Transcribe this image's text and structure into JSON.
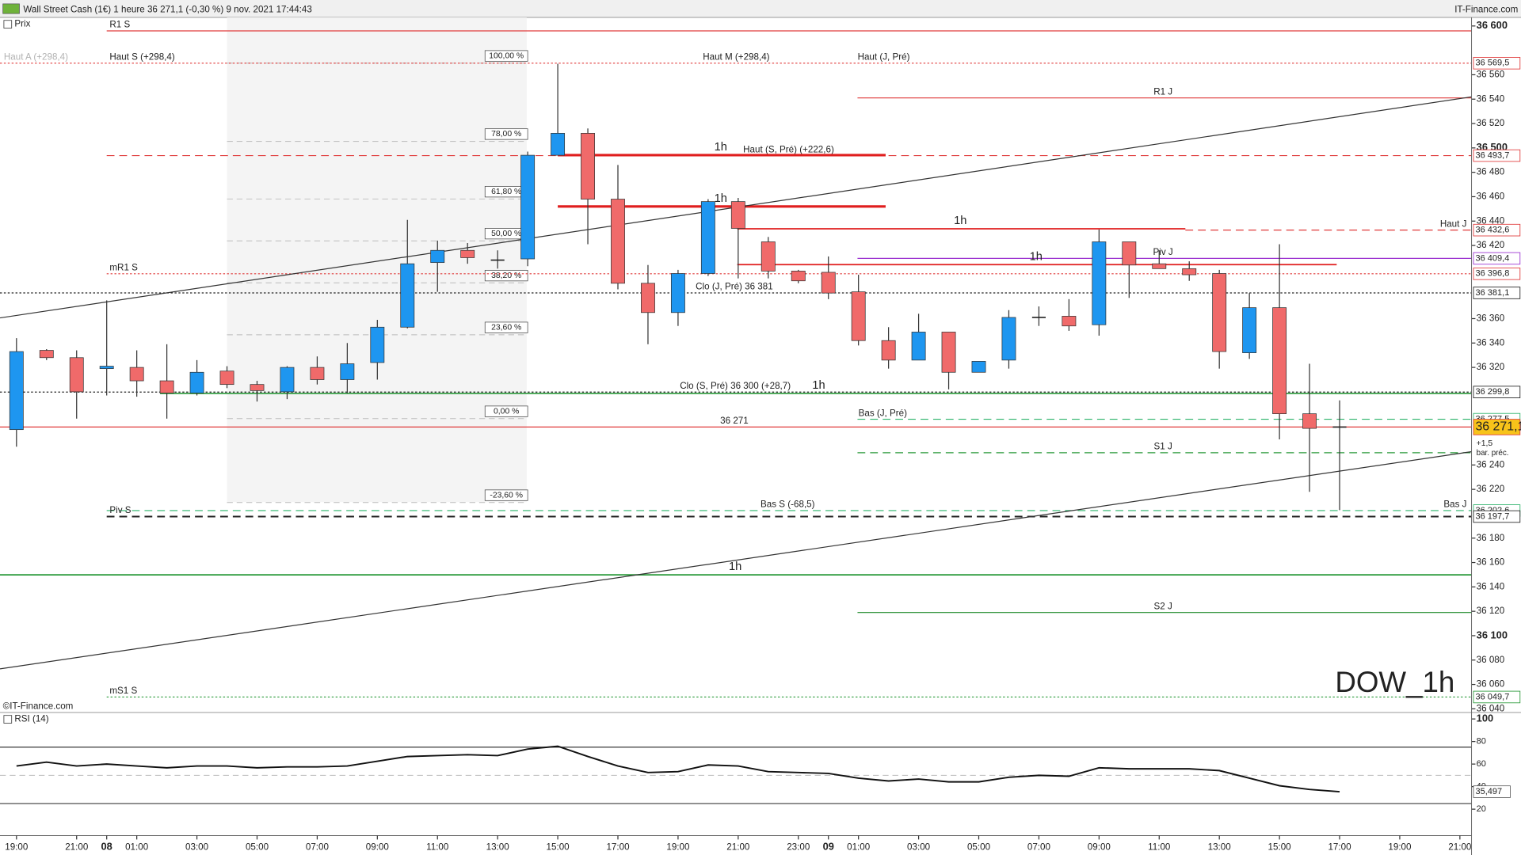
{
  "header": {
    "title": "Wall Street Cash (1€) 1 heure 36 271,1 (-0,30 %) 9 nov. 2021 17:44:43",
    "brand": "IT-Finance.com"
  },
  "chart_data": [
    {
      "type": "candlestick",
      "name": "Prix",
      "up_color": "#1e96f0",
      "down_color": "#f06a6a",
      "categories": [
        "19:00",
        null,
        "21:00",
        "08",
        "01:00",
        null,
        "03:00",
        null,
        "05:00",
        null,
        "07:00",
        null,
        "09:00",
        null,
        "11:00",
        null,
        "13:00",
        null,
        "15:00",
        null,
        "17:00",
        null,
        "19:00",
        null,
        "21:00",
        null,
        "23:00",
        "09",
        "01:00",
        null,
        "03:00",
        null,
        "05:00",
        null,
        "07:00",
        null,
        "09:00",
        null,
        "11:00",
        null,
        "13:00",
        null,
        "15:00",
        null,
        "17:00",
        null,
        "19:00",
        null,
        "21:00"
      ],
      "open": [
        36269,
        36334,
        36328,
        36319,
        36320,
        36309,
        36299,
        36317,
        36306,
        36300,
        36320,
        36310,
        36324,
        36353,
        36406,
        36416,
        36408,
        36409,
        36494,
        36512,
        36458,
        36389,
        36365,
        36397,
        36456,
        36423,
        36399,
        36398,
        36382,
        36342,
        36326,
        36349,
        36316,
        36326,
        36361,
        36362,
        36355,
        36423,
        36405,
        36401,
        36397,
        36332,
        36369,
        36282,
        36271.1,
        null,
        null,
        null,
        null
      ],
      "high": [
        36344,
        36335,
        36334,
        36375,
        36334,
        36339,
        36326,
        36321,
        36309,
        36321,
        36329,
        36340,
        36359,
        36441,
        36424,
        36422,
        36416,
        36497,
        36569,
        36516,
        36486,
        36404,
        36400,
        36458,
        36459,
        36427,
        36400,
        36411,
        36396,
        36353,
        36364,
        36349,
        36325,
        36367,
        36370,
        36376,
        36433,
        36423,
        36416,
        36407,
        36400,
        36381,
        36421,
        36323,
        36293,
        null,
        null,
        null,
        null
      ],
      "low": [
        36255,
        36326,
        36278,
        36297,
        36296,
        36278,
        36297,
        36303,
        36292,
        36294,
        36306,
        36299,
        36310,
        36352,
        36382,
        36405,
        36401,
        36403,
        36494,
        36421,
        36384,
        36339,
        36354,
        36395,
        36393,
        36393,
        36389,
        36376,
        36338,
        36319,
        36326,
        36302,
        36316,
        36319,
        36354,
        36350,
        36346,
        36377,
        36401,
        36391,
        36319,
        36327,
        36261,
        36218,
        36203,
        null,
        null,
        null,
        null
      ],
      "close": [
        36333,
        36328,
        36300,
        36321,
        36309,
        36299,
        36316,
        36306,
        36301,
        36320,
        36310,
        36323,
        36353,
        36405,
        36416,
        36410,
        36408,
        36494,
        36512,
        36458,
        36389,
        36365,
        36397,
        36456,
        36434,
        36399,
        36391,
        36381,
        36342,
        36326,
        36349,
        36316,
        36325,
        36361,
        36361,
        36354,
        36423,
        36404,
        36401,
        36396,
        36333,
        36369,
        36282,
        36270,
        36271.1,
        null,
        null,
        null,
        null
      ],
      "ylim": [
        36037,
        36607
      ],
      "yticks": [
        {
          "value": 36600,
          "label": "36 600"
        },
        {
          "value": 36560,
          "label": "36 560"
        },
        {
          "value": 36540,
          "label": "36 540"
        },
        {
          "value": 36520,
          "label": "36 520"
        },
        {
          "value": 36500,
          "label": "36 500"
        },
        {
          "value": 36480,
          "label": "36 480"
        },
        {
          "value": 36460,
          "label": "36 460"
        },
        {
          "value": 36440,
          "label": "36 440"
        },
        {
          "value": 36420,
          "label": "36 420"
        },
        {
          "value": 36360,
          "label": "36 360"
        },
        {
          "value": 36340,
          "label": "36 340"
        },
        {
          "value": 36320,
          "label": "36 320"
        },
        {
          "value": 36240,
          "label": "36 240"
        },
        {
          "value": 36220,
          "label": "36 220"
        },
        {
          "value": 36180,
          "label": "36 180"
        },
        {
          "value": 36160,
          "label": "36 160"
        },
        {
          "value": 36140,
          "label": "36 140"
        },
        {
          "value": 36120,
          "label": "36 120"
        },
        {
          "value": 36100,
          "label": "36 100"
        },
        {
          "value": 36080,
          "label": "36 080"
        },
        {
          "value": 36060,
          "label": "36 060"
        },
        {
          "value": 36040,
          "label": "36 040"
        }
      ],
      "levels": [
        {
          "labels": [
            "R1 S"
          ],
          "value": 36596,
          "color": "#e03a3a",
          "style": "solid"
        },
        {
          "labels": [
            "Haut A (+298,4)",
            "Haut S (+298,4)",
            "Haut M (+298,4)",
            "Haut (J, Pré)"
          ],
          "value": 36569.5,
          "value_label": "36 569,5",
          "color": "#e03a3a",
          "style": "dotted"
        },
        {
          "labels": [
            "R1 J"
          ],
          "value": 36541,
          "color": "#e03a3a",
          "style": "solid"
        },
        {
          "labels": [
            "Haut (S, Pré) (+222,6)"
          ],
          "value": 36493.7,
          "value_label": "36 493,7",
          "color": "#e03a3a",
          "style": "dashed"
        },
        {
          "labels": [
            "Haut J"
          ],
          "value": 36432.6,
          "value_label": "36 432,6",
          "color": "#e03a3a",
          "style": "dashed"
        },
        {
          "labels": [
            "Piv J"
          ],
          "value": 36409.4,
          "value_label": "36 409,4",
          "color": "#9a30d0",
          "style": "solid"
        },
        {
          "labels": [
            "mR1 S"
          ],
          "value": 36396.8,
          "value_label": "36 396,8",
          "color": "#e03a3a",
          "style": "dotted"
        },
        {
          "labels": [
            "Clo (J, Pré) 36 381"
          ],
          "value": 36381.1,
          "value_label": "36 381,1",
          "color": "#222222",
          "style": "dotted"
        },
        {
          "labels": [
            "Clo (S, Pré) 36 300 (+28,7)"
          ],
          "value": 36299.8,
          "value_label": "36 299,8",
          "color": "#222222",
          "style": "dotted"
        },
        {
          "labels": [
            "Bas (J, Pré)"
          ],
          "value": 36277.5,
          "value_label": "36 277,5",
          "color": "#2bb36a",
          "style": "dashed"
        },
        {
          "labels": [
            "36 271"
          ],
          "value": 36271.1,
          "value_label": "36 271,1",
          "color": "#e03a3a",
          "style": "solid",
          "highlight": true
        },
        {
          "labels": [
            "S1 J"
          ],
          "value": 36250,
          "color": "#2a9a3a",
          "style": "dashed"
        },
        {
          "labels": [
            "Bas S (-68,5)",
            "Bas J"
          ],
          "value": 36202.6,
          "value_label": "36 202,6",
          "color": "#2bb36a",
          "style": "dashed"
        },
        {
          "labels": [
            "Piv S"
          ],
          "value": 36197.7,
          "value_label": "36 197,7",
          "color": "#222222",
          "style": "dashed"
        },
        {
          "labels": [
            "S2 J"
          ],
          "value": 36119,
          "color": "#1f8a2a",
          "style": "solid"
        },
        {
          "labels": [
            "mS1 S"
          ],
          "value": 36049.7,
          "value_label": "36 049,7",
          "color": "#2a9a3a",
          "style": "dotted"
        }
      ],
      "hlines": [
        {
          "label": "1h",
          "value": 36494.1,
          "color": "#e01e1e",
          "thick": true
        },
        {
          "label": "1h",
          "value": 36452,
          "color": "#e01e1e",
          "thick": true
        },
        {
          "label": "1h",
          "value": 36433.7,
          "color": "#e01e1e",
          "thick": false
        },
        {
          "label": "1h",
          "value": 36404.3,
          "color": "#e01e1e",
          "thick": false
        },
        {
          "label": "1h",
          "value": 36298.6,
          "color": "#2a9a3a",
          "thick": false
        },
        {
          "label": "1h",
          "value": 36149.9,
          "color": "#2a9a3a",
          "thick": false
        }
      ],
      "trendlines": [
        {
          "values": [
            36360.6,
            36541.9
          ],
          "color": "#333333"
        },
        {
          "values": [
            36072.8,
            36250.9
          ],
          "color": "#333333"
        }
      ],
      "fibonacci": {
        "low": 36278,
        "high": 36569.5,
        "levels": [
          {
            "value": 100,
            "label": "100,00 %"
          },
          {
            "value": 78,
            "label": "78,00 %"
          },
          {
            "value": 61.8,
            "label": "61,80 %"
          },
          {
            "value": 50,
            "label": "50,00 %"
          },
          {
            "value": 38.2,
            "label": "38,20 %"
          },
          {
            "value": 23.6,
            "label": "23,60 %"
          },
          {
            "value": 0,
            "label": "0,00 %"
          },
          {
            "value": -23.6,
            "label": "-23,60 %"
          }
        ]
      },
      "watermark": "DOW_1h",
      "copyright": "©IT-Finance.com",
      "change": {
        "label": "+1,5",
        "note": "bar. préc."
      }
    },
    {
      "type": "line",
      "name": "RSI (14)",
      "series": [
        {
          "name": "RSI (14)",
          "color": "#111111",
          "values": [
            58.3,
            61.7,
            58.3,
            60,
            58.3,
            56.7,
            58.3,
            58.3,
            56.7,
            57.5,
            57.5,
            58.3,
            62.5,
            66.7,
            67.5,
            68.3,
            67.5,
            73.3,
            75.8,
            66.7,
            58.3,
            52.5,
            53.3,
            59.2,
            58.3,
            53.3,
            52.5,
            51.7,
            47.5,
            45,
            46.7,
            44.2,
            44.2,
            48.3,
            50,
            49.2,
            56.7,
            55.8,
            55.8,
            55.8,
            54.2,
            47.5,
            40.8,
            37.5,
            35.497,
            null,
            null,
            null,
            null
          ]
        }
      ],
      "last_value_label": "35,497",
      "ylim": [
        0,
        104
      ],
      "yticks": [
        100,
        80,
        60,
        40,
        20
      ],
      "levels": [
        75,
        50,
        25
      ]
    }
  ]
}
